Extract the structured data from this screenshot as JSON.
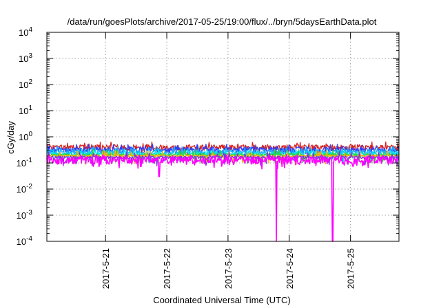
{
  "chart_data": {
    "type": "line",
    "title": "/data/run/goesPlots/archive/2017-05-25/19:00/flux/../bryn/5daysEarthData.plot",
    "xlabel": "Coordinated Universal Time (UTC)",
    "ylabel": "cGy/day",
    "yscale": "log",
    "ylim": [
      0.0001,
      10000
    ],
    "xlim": [
      "2017-05-20 01:00",
      "2017-05-25 19:00"
    ],
    "grid": true,
    "legend": "none",
    "y_ticks": [
      {
        "base": "10",
        "exp": "-4"
      },
      {
        "base": "10",
        "exp": "-3"
      },
      {
        "base": "10",
        "exp": "-2"
      },
      {
        "base": "10",
        "exp": "-1"
      },
      {
        "base": "10",
        "exp": "0"
      },
      {
        "base": "10",
        "exp": "1"
      },
      {
        "base": "10",
        "exp": "2"
      },
      {
        "base": "10",
        "exp": "3"
      },
      {
        "base": "10",
        "exp": "4"
      }
    ],
    "x_ticks": [
      "2017-5-21",
      "2017-5-22",
      "2017-5-23",
      "2017-5-24",
      "2017-5-25"
    ],
    "series": [
      {
        "color": "#d62020",
        "level": 0.4,
        "spread": 0.1
      },
      {
        "color": "#2a40ff",
        "level": 0.33,
        "spread": 0.08
      },
      {
        "color": "#1fa7ff",
        "level": 0.27,
        "spread": 0.06
      },
      {
        "color": "#00e5e5",
        "level": 0.23,
        "spread": 0.04
      },
      {
        "color": "#2fd52f",
        "level": 0.205,
        "spread": 0.025
      },
      {
        "color": "#ffb000",
        "level": 0.185,
        "spread": 0.02
      },
      {
        "color": "#8a2be2",
        "level": 0.165,
        "spread": 0.02
      },
      {
        "color": "#ff00ff",
        "level": 0.13,
        "spread": 0.04,
        "dropouts": [
          "2017-05-23 19:00",
          "2017-05-24 17:00"
        ],
        "dips": [
          {
            "x": "2017-05-21 21:00",
            "y": 0.03
          }
        ]
      }
    ]
  }
}
